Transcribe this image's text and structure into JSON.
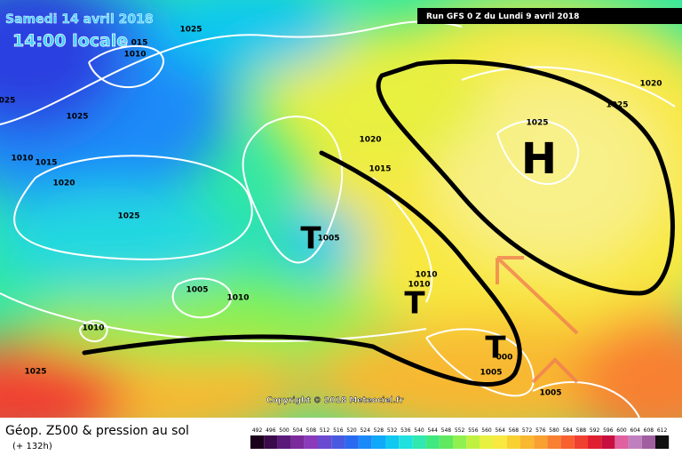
{
  "header": {
    "date": "Samedi 14 avril 2018",
    "time": "14:00 locale",
    "run": "Run GFS 0 Z du Lundi 9 avril 2018"
  },
  "map": {
    "isobar_labels": [
      "1025",
      "015",
      "1010",
      "025",
      "1025",
      "1010",
      "1015",
      "1020",
      "1025",
      "1020",
      "1015",
      "1005",
      "1010",
      "1010",
      "1005",
      "1010",
      "1010",
      "1025",
      "000",
      "1005",
      "1005",
      "1025",
      "1025",
      "1020"
    ],
    "pressure_centers": [
      "H",
      "T",
      "T",
      "T"
    ],
    "copyright": "Copyright © 2018 Meteociel.fr"
  },
  "legend": {
    "title": "Géop. Z500 & pression au sol",
    "lead_time": "(+ 132h)",
    "scale": {
      "labels": [
        492,
        496,
        500,
        504,
        508,
        512,
        516,
        520,
        524,
        528,
        532,
        536,
        540,
        544,
        548,
        552,
        556,
        560,
        564,
        568,
        572,
        576,
        580,
        584,
        588,
        592,
        596,
        600,
        604,
        608,
        612
      ],
      "colors": [
        "#1a001a",
        "#3a0a4a",
        "#5a1a7a",
        "#7a2a9a",
        "#8a3aba",
        "#6a4ad0",
        "#4a5ae0",
        "#2a6af0",
        "#1a8af8",
        "#10a8f8",
        "#10c8f0",
        "#20e0e0",
        "#30e8b0",
        "#40e880",
        "#60e860",
        "#90f050",
        "#c0f040",
        "#e8f040",
        "#f8e840",
        "#f8d030",
        "#f8b830",
        "#f8a030",
        "#f88030",
        "#f86030",
        "#f04030",
        "#e02030",
        "#c81040",
        "#e060a0",
        "#c080c0",
        "#a060a0",
        "#101010"
      ]
    }
  }
}
